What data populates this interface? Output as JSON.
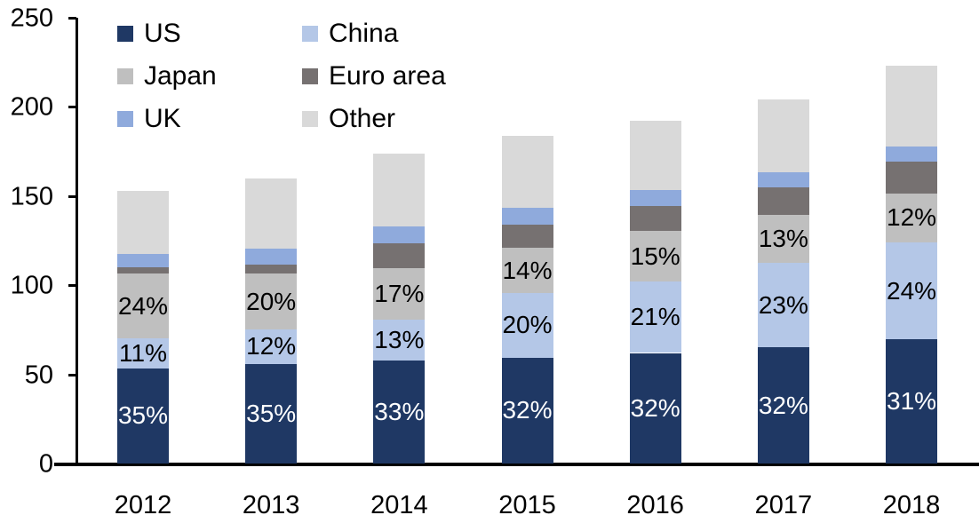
{
  "chart_data": {
    "type": "bar",
    "variant": "stacked-column",
    "title": "",
    "xlabel": "",
    "ylabel": "",
    "categories": [
      "2012",
      "2013",
      "2014",
      "2015",
      "2016",
      "2017",
      "2018"
    ],
    "series": [
      {
        "name": "US",
        "color": "#1F3864",
        "values": [
          53.5,
          56.0,
          58.0,
          59.5,
          62.0,
          65.0,
          69.5
        ],
        "labels": [
          "35%",
          "35%",
          "33%",
          "32%",
          "32%",
          "32%",
          "31%"
        ],
        "label_color": "#FFFFFF"
      },
      {
        "name": "China",
        "color": "#B4C7E7",
        "values": [
          16.5,
          19.0,
          22.5,
          36.0,
          40.0,
          47.5,
          54.5
        ],
        "labels": [
          "11%",
          "12%",
          "13%",
          "20%",
          "21%",
          "23%",
          "24%"
        ],
        "label_color": "#000000"
      },
      {
        "name": "Japan",
        "color": "#BFBFBF",
        "values": [
          36.5,
          31.5,
          29.0,
          25.5,
          28.5,
          27.0,
          27.5
        ],
        "labels": [
          "24%",
          "20%",
          "17%",
          "14%",
          "15%",
          "13%",
          "12%"
        ],
        "label_color": "#000000"
      },
      {
        "name": "Euro area",
        "color": "#767171",
        "values": [
          3.5,
          5.0,
          14.0,
          13.0,
          14.0,
          15.5,
          18.0
        ],
        "labels": [
          "",
          "",
          "",
          "",
          "",
          "",
          ""
        ],
        "label_color": "#000000"
      },
      {
        "name": "UK",
        "color": "#8FAADC",
        "values": [
          7.5,
          9.0,
          9.5,
          9.5,
          9.0,
          8.5,
          8.5
        ],
        "labels": [
          "",
          "",
          "",
          "",
          "",
          "",
          ""
        ],
        "label_color": "#000000"
      },
      {
        "name": "Other",
        "color": "#D9D9D9",
        "values": [
          35.5,
          39.5,
          41.0,
          40.5,
          38.5,
          40.5,
          45.0
        ],
        "labels": [
          "",
          "",
          "",
          "",
          "",
          "",
          ""
        ],
        "label_color": "#000000"
      }
    ],
    "totals": [
      153,
      160,
      174,
      184,
      192,
      204,
      223
    ],
    "y_axis": {
      "min": 0,
      "max": 250,
      "tick_step": 50,
      "tick_labels": [
        "0",
        "50",
        "100",
        "150",
        "200",
        "250"
      ]
    },
    "grid": "off",
    "legend": {
      "position": "top-left",
      "columns": [
        {
          "items": [
            {
              "label": "US",
              "color": "#1F3864"
            },
            {
              "label": "Japan",
              "color": "#BFBFBF"
            },
            {
              "label": "UK",
              "color": "#8FAADC"
            }
          ]
        },
        {
          "items": [
            {
              "label": "China",
              "color": "#B4C7E7"
            },
            {
              "label": "Euro area",
              "color": "#767171"
            },
            {
              "label": "Other",
              "color": "#D9D9D9"
            }
          ]
        }
      ]
    }
  }
}
